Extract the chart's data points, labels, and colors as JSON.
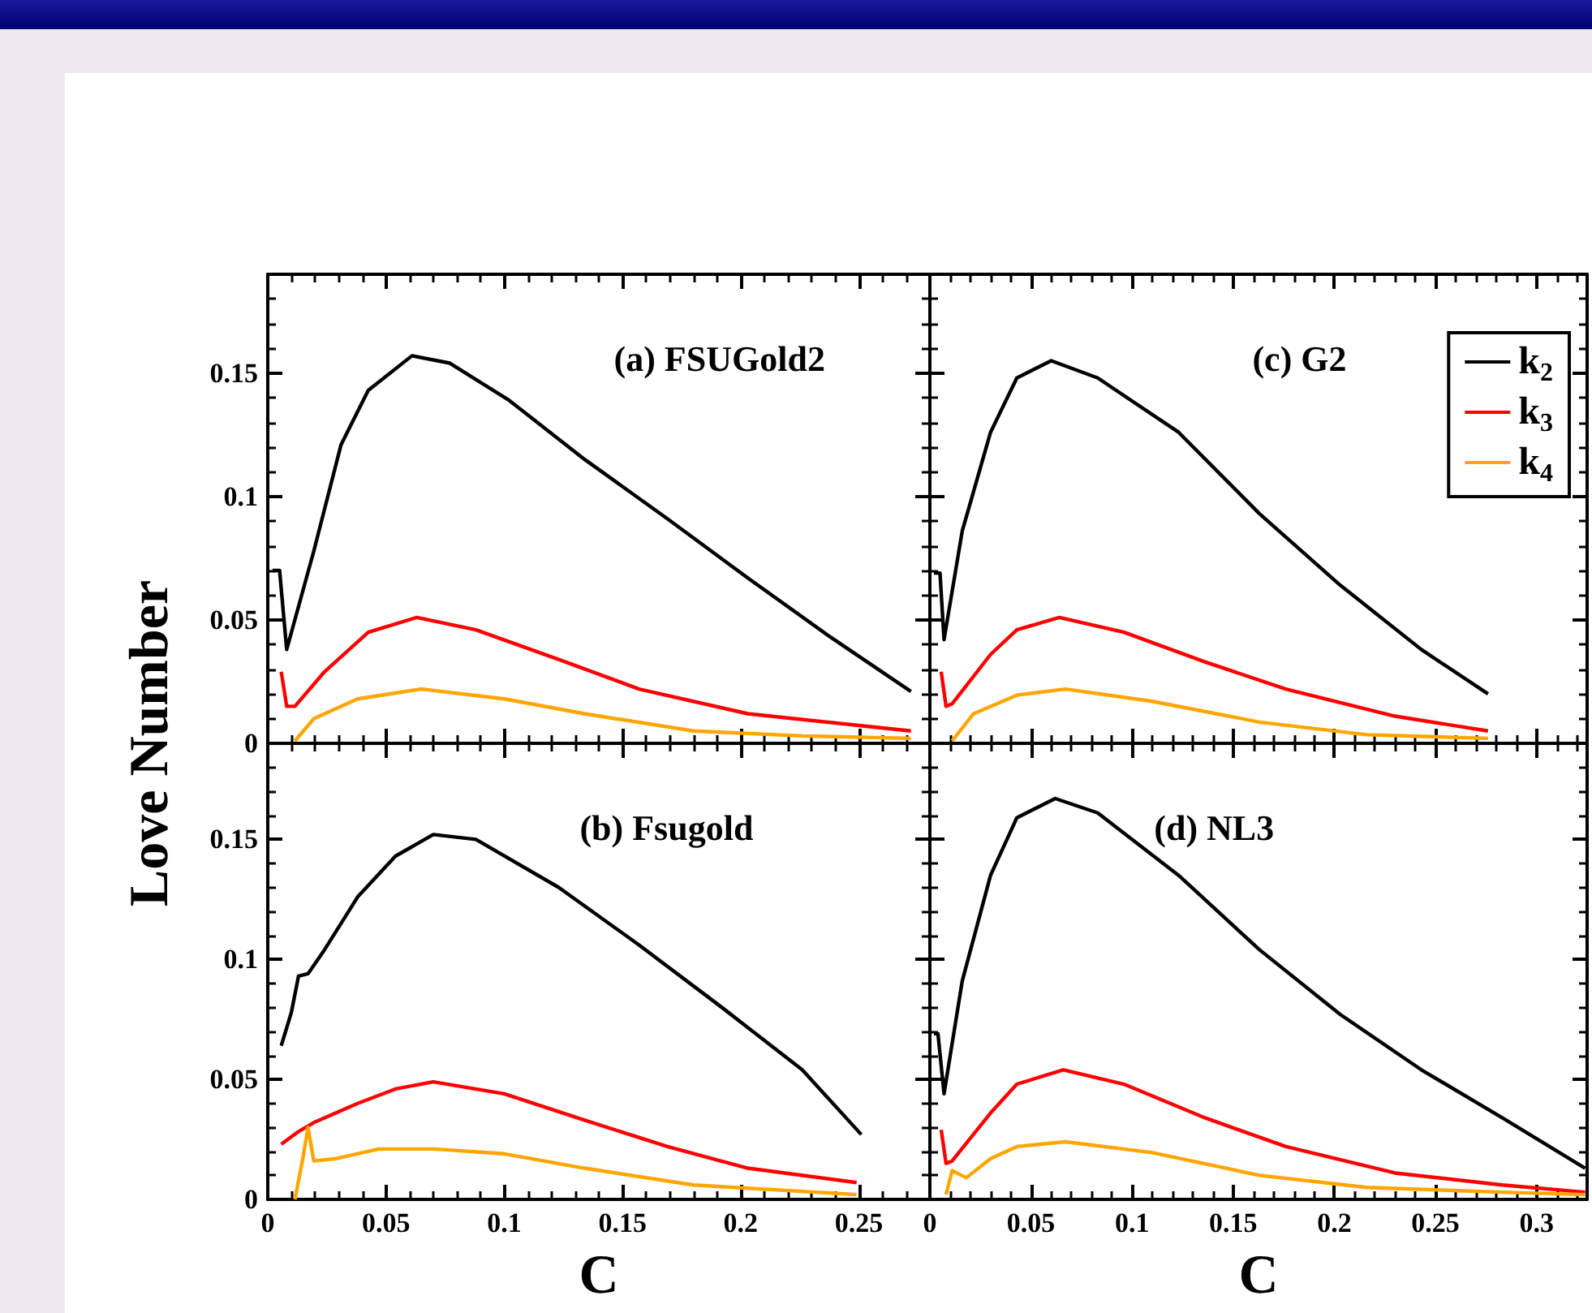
{
  "chart_data": [
    {
      "type": "line",
      "title": "(a) FSUGold2",
      "ylabel": "Love Number",
      "marker": "none",
      "tick_labels": "y",
      "xlim": [
        0,
        0.28
      ],
      "xticks": [
        0,
        0.05,
        0.1,
        0.15,
        0.2,
        0.25
      ],
      "ylim": [
        0,
        0.19
      ],
      "yticks": [
        0,
        0.05,
        0.1,
        0.15
      ],
      "grid": false,
      "legend": false,
      "series": [
        {
          "color": "#000000",
          "x": [
            0.002,
            0.005,
            0.008,
            0.0195,
            0.031,
            0.0425,
            0.061,
            0.077,
            0.102,
            0.134,
            0.169,
            0.203,
            0.238,
            0.272
          ],
          "values": [
            0.07,
            0.07,
            0.038,
            0.078,
            0.121,
            0.143,
            0.157,
            0.154,
            0.139,
            0.115,
            0.091,
            0.067,
            0.043,
            0.021
          ]
        },
        {
          "color": "#ff0000",
          "x": [
            0.0057,
            0.008,
            0.0115,
            0.024,
            0.0425,
            0.063,
            0.088,
            0.123,
            0.157,
            0.203,
            0.272
          ],
          "values": [
            0.029,
            0.015,
            0.015,
            0.029,
            0.045,
            0.051,
            0.046,
            0.034,
            0.022,
            0.012,
            0.005
          ]
        },
        {
          "color": "#ffa500",
          "x": [
            0.0115,
            0.0195,
            0.038,
            0.065,
            0.1,
            0.134,
            0.18,
            0.226,
            0.272
          ],
          "values": [
            0.001,
            0.01,
            0.018,
            0.022,
            0.018,
            0.012,
            0.005,
            0.003,
            0.002
          ]
        }
      ]
    },
    {
      "type": "line",
      "title": "(c) G2",
      "marker": "none",
      "tick_labels": false,
      "xlim": [
        0,
        0.325
      ],
      "xticks": [
        0,
        0.05,
        0.1,
        0.15,
        0.2,
        0.25,
        0.3
      ],
      "ylim": [
        0,
        0.19
      ],
      "yticks": [
        0,
        0.05,
        0.1,
        0.15
      ],
      "grid": false,
      "legend": "top right",
      "series": [
        {
          "name": "k$_{2}$",
          "color": "#000000",
          "x": [
            0.002,
            0.005,
            0.007,
            0.016,
            0.03,
            0.043,
            0.06,
            0.083,
            0.123,
            0.163,
            0.203,
            0.243,
            0.276
          ],
          "values": [
            0.069,
            0.069,
            0.042,
            0.086,
            0.126,
            0.148,
            0.155,
            0.148,
            0.126,
            0.093,
            0.064,
            0.038,
            0.02
          ]
        },
        {
          "name": "k$_{3}$",
          "color": "#ff0000",
          "x": [
            0.0056,
            0.008,
            0.011,
            0.03,
            0.043,
            0.064,
            0.096,
            0.136,
            0.176,
            0.23,
            0.276
          ],
          "values": [
            0.029,
            0.015,
            0.016,
            0.036,
            0.046,
            0.051,
            0.045,
            0.033,
            0.022,
            0.011,
            0.005
          ]
        },
        {
          "name": "k$_{4}$",
          "color": "#ffa500",
          "x": [
            0.011,
            0.0216,
            0.043,
            0.067,
            0.11,
            0.163,
            0.216,
            0.276
          ],
          "values": [
            0.001,
            0.012,
            0.0195,
            0.022,
            0.017,
            0.0086,
            0.0035,
            0.002
          ]
        }
      ]
    },
    {
      "type": "line",
      "title": "(b) Fsugold",
      "xlabel": "C",
      "marker": "none",
      "xlim": [
        0,
        0.28
      ],
      "xticks": [
        0,
        0.05,
        0.1,
        0.15,
        0.2,
        0.25
      ],
      "ylim": [
        0,
        0.19
      ],
      "yticks": [
        0,
        0.05,
        0.1,
        0.15
      ],
      "grid": false,
      "legend": false,
      "series": [
        {
          "color": "#000000",
          "x": [
            0.0057,
            0.01,
            0.013,
            0.017,
            0.024,
            0.038,
            0.054,
            0.07,
            0.088,
            0.123,
            0.157,
            0.192,
            0.226,
            0.251
          ],
          "values": [
            0.064,
            0.078,
            0.093,
            0.094,
            0.104,
            0.126,
            0.143,
            0.152,
            0.15,
            0.13,
            0.106,
            0.08,
            0.054,
            0.027
          ]
        },
        {
          "color": "#ff0000",
          "x": [
            0.0057,
            0.0126,
            0.0195,
            0.038,
            0.054,
            0.07,
            0.1,
            0.134,
            0.169,
            0.203,
            0.249
          ],
          "values": [
            0.023,
            0.028,
            0.032,
            0.04,
            0.046,
            0.049,
            0.044,
            0.033,
            0.022,
            0.013,
            0.007
          ]
        },
        {
          "color": "#ffa500",
          "x": [
            0.0115,
            0.015,
            0.017,
            0.0195,
            0.029,
            0.047,
            0.07,
            0.1,
            0.134,
            0.18,
            0.249
          ],
          "values": [
            0.0,
            0.018,
            0.03,
            0.016,
            0.017,
            0.021,
            0.021,
            0.019,
            0.013,
            0.006,
            0.002
          ]
        }
      ]
    },
    {
      "type": "line",
      "title": "(d) NL3",
      "xlabel": "C",
      "marker": "none",
      "tick_labels": "x",
      "xlim": [
        0,
        0.325
      ],
      "xticks": [
        0,
        0.05,
        0.1,
        0.15,
        0.2,
        0.25,
        0.3
      ],
      "ylim": [
        0,
        0.19
      ],
      "yticks": [
        0,
        0.05,
        0.1,
        0.15
      ],
      "grid": false,
      "legend": false,
      "series": [
        {
          "color": "#000000",
          "x": [
            0.002,
            0.004,
            0.007,
            0.016,
            0.03,
            0.043,
            0.062,
            0.083,
            0.123,
            0.163,
            0.203,
            0.243,
            0.283,
            0.324
          ],
          "values": [
            0.069,
            0.069,
            0.044,
            0.091,
            0.135,
            0.159,
            0.167,
            0.161,
            0.135,
            0.104,
            0.077,
            0.054,
            0.034,
            0.013
          ]
        },
        {
          "color": "#ff0000",
          "x": [
            0.0056,
            0.008,
            0.011,
            0.03,
            0.043,
            0.066,
            0.096,
            0.136,
            0.176,
            0.23,
            0.283,
            0.324
          ],
          "values": [
            0.029,
            0.015,
            0.016,
            0.036,
            0.048,
            0.054,
            0.048,
            0.034,
            0.022,
            0.011,
            0.006,
            0.003
          ]
        },
        {
          "color": "#ffa500",
          "x": [
            0.008,
            0.011,
            0.018,
            0.03,
            0.043,
            0.067,
            0.11,
            0.163,
            0.216,
            0.283,
            0.324
          ],
          "values": [
            0.002,
            0.012,
            0.009,
            0.017,
            0.022,
            0.024,
            0.0195,
            0.01,
            0.005,
            0.003,
            0.002
          ]
        }
      ]
    }
  ]
}
